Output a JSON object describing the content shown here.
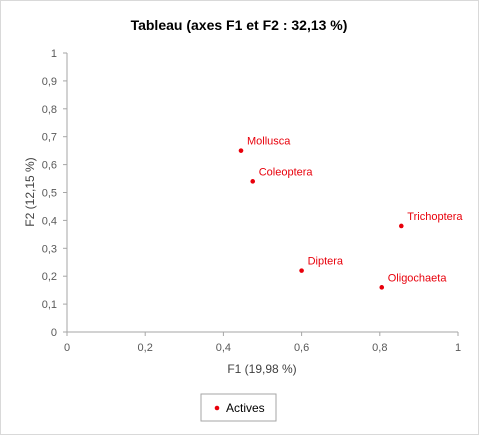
{
  "chart_data": {
    "type": "scatter",
    "title": "Tableau (axes F1 et F2 : 32,13 %)",
    "xlabel": "F1 (19,98 %)",
    "ylabel": "F2 (12,15 %)",
    "xlim": [
      0,
      1
    ],
    "ylim": [
      0,
      1
    ],
    "xticks": [
      "0",
      "0,2",
      "0,4",
      "0,6",
      "0,8",
      "1"
    ],
    "yticks": [
      "0",
      "0,1",
      "0,2",
      "0,3",
      "0,4",
      "0,5",
      "0,6",
      "0,7",
      "0,8",
      "0,9",
      "1"
    ],
    "grid": false,
    "legend_position": "bottom-left",
    "series": [
      {
        "name": "Actives",
        "color": "#e8000b",
        "points": [
          {
            "label": "Mollusca",
            "x": 0.445,
            "y": 0.65
          },
          {
            "label": "Coleoptera",
            "x": 0.475,
            "y": 0.54
          },
          {
            "label": "Trichoptera",
            "x": 0.855,
            "y": 0.38
          },
          {
            "label": "Diptera",
            "x": 0.6,
            "y": 0.22
          },
          {
            "label": "Oligochaeta",
            "x": 0.805,
            "y": 0.16
          }
        ]
      }
    ]
  }
}
